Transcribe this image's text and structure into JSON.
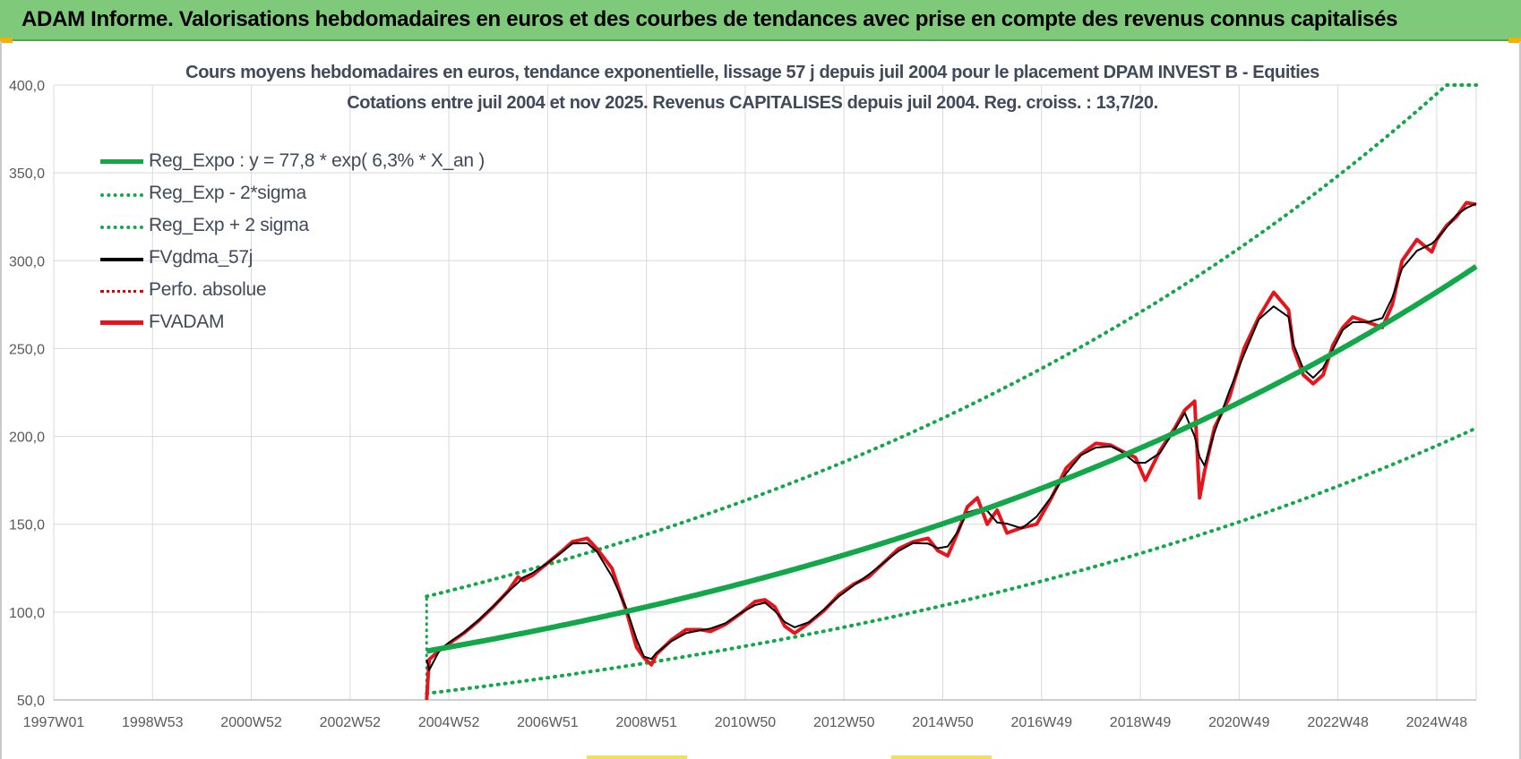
{
  "banner": {
    "title": "ADAM Informe. Valorisations hebdomadaires en euros et des courbes de tendances avec prise en compte des revenus connus capitalisés"
  },
  "chart_data": {
    "type": "line",
    "title": "Cours moyens hebdomadaires en euros, tendance exponentielle, lissage 57 j depuis juil 2004 pour le placement DPAM INVEST B - Equities",
    "subtitle": "Cotations entre juil 2004 et nov 2025. Revenus CAPITALISES depuis juil 2004. Reg. croiss. : 13,7/20.",
    "xlabel": "",
    "ylabel": "",
    "ylim": [
      50,
      400
    ],
    "xlim": [
      1997.0,
      2025.8
    ],
    "y_ticks": [
      "50,0",
      "100,0",
      "150,0",
      "200,0",
      "250,0",
      "300,0",
      "350,0",
      "400,0"
    ],
    "x_ticks": [
      {
        "label": "1997W01",
        "year": 1997.0
      },
      {
        "label": "1998W53",
        "year": 1999.0
      },
      {
        "label": "2000W52",
        "year": 2001.0
      },
      {
        "label": "2002W52",
        "year": 2003.0
      },
      {
        "label": "2004W52",
        "year": 2005.0
      },
      {
        "label": "2006W51",
        "year": 2007.0
      },
      {
        "label": "2008W51",
        "year": 2009.0
      },
      {
        "label": "2010W50",
        "year": 2011.0
      },
      {
        "label": "2012W50",
        "year": 2013.0
      },
      {
        "label": "2014W50",
        "year": 2015.0
      },
      {
        "label": "2016W49",
        "year": 2017.0
      },
      {
        "label": "2018W49",
        "year": 2019.0
      },
      {
        "label": "2020W49",
        "year": 2021.0
      },
      {
        "label": "2022W48",
        "year": 2023.0
      },
      {
        "label": "2024W48",
        "year": 2025.0
      }
    ],
    "grid": true,
    "legend_position": "top-left",
    "regression": {
      "a": 77.8,
      "rate": 0.063,
      "start_year": 2004.55,
      "end_year": 2025.8
    },
    "series": [
      {
        "name": "Reg_Expo : y = 77,8 * exp( 6,3% *  X_an )",
        "color": "#12a84a",
        "style": "solid-thick"
      },
      {
        "name": "Reg_Exp - 2*sigma",
        "color": "#12a84a",
        "style": "dotted"
      },
      {
        "name": "Reg_Exp + 2 sigma",
        "color": "#12a84a",
        "style": "dotted"
      },
      {
        "name": "FVgdma_57j",
        "color": "#000000",
        "style": "solid"
      },
      {
        "name": "Perfo. absolue",
        "color": "#e00000",
        "style": "dotted-thin"
      },
      {
        "name": "FVADAM",
        "color": "#e8141c",
        "style": "solid-thick",
        "x": [
          2004.55,
          2004.6,
          2004.8,
          2005.0,
          2005.3,
          2005.6,
          2005.9,
          2006.2,
          2006.4,
          2006.5,
          2006.7,
          2007.0,
          2007.3,
          2007.5,
          2007.8,
          2008.0,
          2008.3,
          2008.6,
          2008.8,
          2008.95,
          2009.1,
          2009.2,
          2009.5,
          2009.8,
          2010.1,
          2010.3,
          2010.6,
          2010.9,
          2011.2,
          2011.4,
          2011.6,
          2011.8,
          2012.0,
          2012.3,
          2012.6,
          2012.9,
          2013.2,
          2013.5,
          2013.8,
          2014.1,
          2014.4,
          2014.7,
          2014.9,
          2015.1,
          2015.3,
          2015.5,
          2015.7,
          2015.9,
          2016.1,
          2016.3,
          2016.6,
          2016.9,
          2017.2,
          2017.5,
          2017.8,
          2018.1,
          2018.4,
          2018.6,
          2018.9,
          2019.1,
          2019.4,
          2019.7,
          2019.9,
          2020.1,
          2020.2,
          2020.3,
          2020.5,
          2020.8,
          2021.1,
          2021.4,
          2021.7,
          2022.0,
          2022.1,
          2022.3,
          2022.5,
          2022.7,
          2022.9,
          2023.1,
          2023.3,
          2023.6,
          2023.9,
          2024.1,
          2024.3,
          2024.6,
          2024.9,
          2025.0,
          2025.2,
          2025.4,
          2025.6,
          2025.8
        ],
        "values": [
          50,
          73,
          78,
          82,
          88,
          95,
          103,
          112,
          120,
          118,
          121,
          128,
          135,
          140,
          142,
          136,
          125,
          100,
          80,
          74,
          70,
          76,
          84,
          90,
          90,
          89,
          93,
          99,
          106,
          107,
          103,
          92,
          88,
          94,
          101,
          110,
          116,
          120,
          128,
          136,
          140,
          142,
          135,
          132,
          145,
          160,
          165,
          150,
          158,
          145,
          148,
          150,
          165,
          182,
          190,
          196,
          195,
          192,
          188,
          175,
          192,
          205,
          215,
          220,
          165,
          180,
          205,
          222,
          250,
          268,
          282,
          272,
          250,
          235,
          230,
          235,
          252,
          262,
          268,
          265,
          262,
          275,
          300,
          312,
          305,
          312,
          320,
          325,
          333,
          332
        ]
      }
    ]
  }
}
